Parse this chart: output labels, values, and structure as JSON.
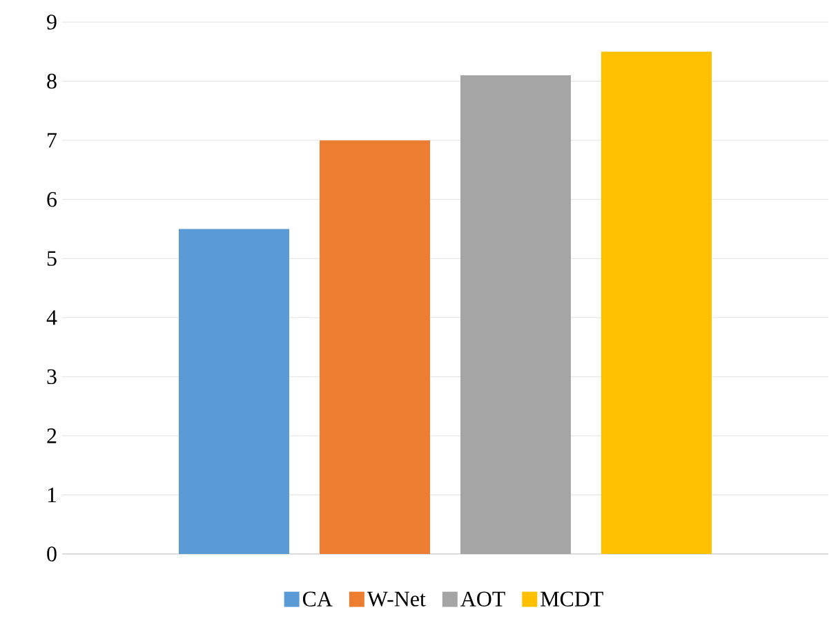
{
  "chart_data": {
    "type": "bar",
    "categories": [
      null
    ],
    "series": [
      {
        "name": "CA",
        "color": "#5b9bd5",
        "values": [
          5.5
        ]
      },
      {
        "name": "W-Net",
        "color": "#ed7d31",
        "values": [
          7
        ]
      },
      {
        "name": "AOT",
        "color": "#a5a5a5",
        "values": [
          8.1
        ]
      },
      {
        "name": "MCDT",
        "color": "#ffc000",
        "values": [
          8.5
        ]
      }
    ],
    "ylim": [
      0,
      9
    ],
    "yticks": [
      0,
      1,
      2,
      3,
      4,
      5,
      6,
      7,
      8,
      9
    ],
    "grid": "y",
    "legend": "bottom"
  }
}
